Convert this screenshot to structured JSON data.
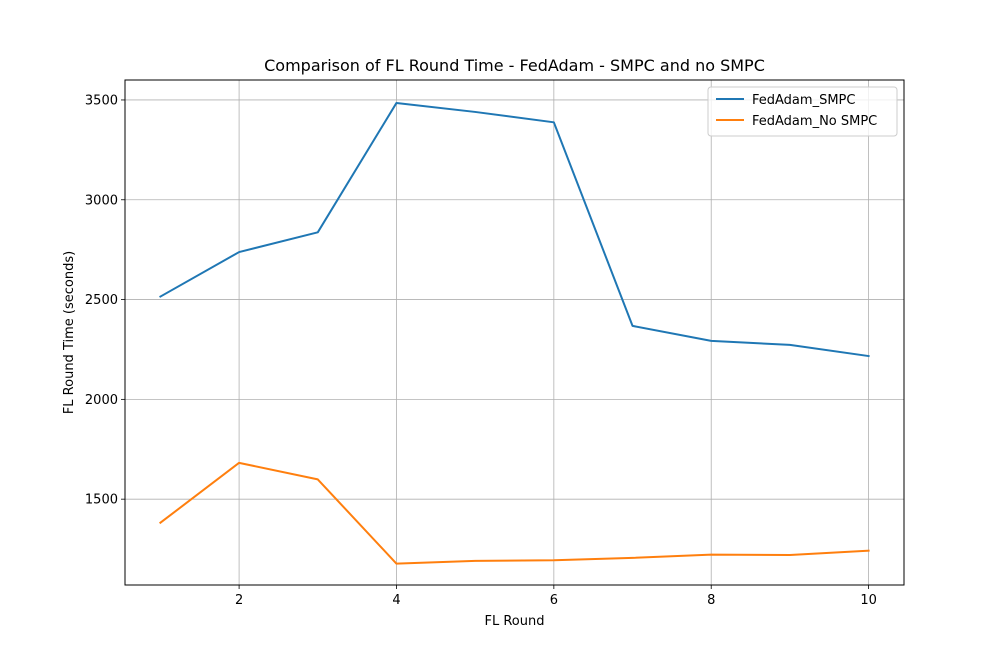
{
  "chart_data": {
    "type": "line",
    "title": "Comparison of FL Round Time - FedAdam - SMPC and no SMPC",
    "xlabel": "FL Round",
    "ylabel": "FL Round Time (seconds)",
    "x": [
      1,
      2,
      3,
      4,
      5,
      6,
      7,
      8,
      9,
      10
    ],
    "xlim": [
      0.55,
      10.45
    ],
    "ylim": [
      1070,
      3600
    ],
    "xticks": [
      2,
      4,
      6,
      8,
      10
    ],
    "yticks": [
      1500,
      2000,
      2500,
      3000,
      3500
    ],
    "grid": true,
    "legend_position": "top-right",
    "series": [
      {
        "name": "FedAdam_SMPC",
        "color": "#1f77b4",
        "values": [
          2515,
          2738,
          2837,
          3485,
          3440,
          3388,
          2368,
          2293,
          2273,
          2217
        ]
      },
      {
        "name": "FedAdam_No SMPC",
        "color": "#ff7f0e",
        "values": [
          1382,
          1682,
          1599,
          1177,
          1191,
          1194,
          1206,
          1222,
          1220,
          1242
        ]
      }
    ]
  }
}
